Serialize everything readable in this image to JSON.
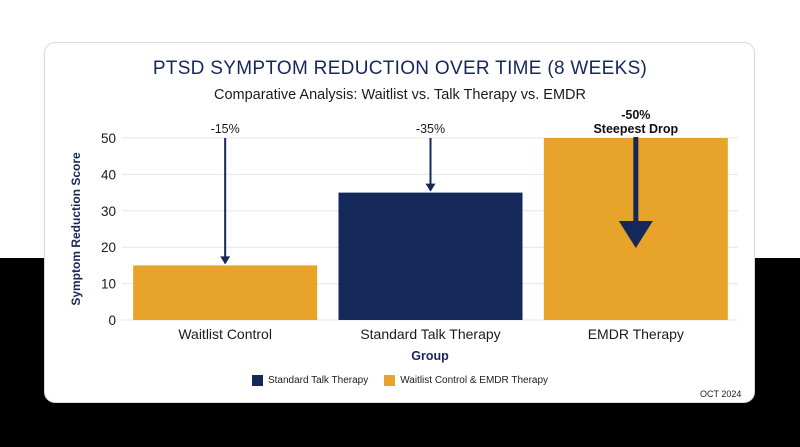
{
  "chart_data": {
    "type": "bar",
    "title": "PTSD SYMPTOM REDUCTION OVER TIME (8 WEEKS)",
    "subtitle": "Comparative Analysis: Waitlist vs. Talk Therapy vs. EMDR",
    "xlabel": "Group",
    "ylabel": "Symptom Reduction Score",
    "ylim": [
      0,
      50
    ],
    "yticks": [
      0,
      10,
      20,
      30,
      40,
      50
    ],
    "grid": true,
    "categories": [
      "Waitlist Control",
      "Standard Talk Therapy",
      "EMDR Therapy"
    ],
    "values": [
      15,
      35,
      50
    ],
    "bar_colors": [
      "#e8a32a",
      "#14295a",
      "#e8a32a"
    ],
    "annotations": [
      {
        "category": "Waitlist Control",
        "text": "-15%",
        "bold": false
      },
      {
        "category": "Standard Talk Therapy",
        "text": "-35%",
        "bold": false
      },
      {
        "category": "EMDR Therapy",
        "text": "-50%",
        "note": "Steepest Drop",
        "bold": true
      }
    ],
    "legend": {
      "placement": "bottom-center",
      "items": [
        {
          "label": "Standard Talk Therapy",
          "color": "#14295a"
        },
        {
          "label": "Waitlist Control & EMDR Therapy",
          "color": "#e8a32a"
        }
      ]
    }
  },
  "footer": {
    "date": "OCT 2024"
  },
  "colors": {
    "navy": "#14295a",
    "gold": "#e8a32a",
    "grid": "#e6e6e6",
    "text": "#1b1b1b"
  }
}
